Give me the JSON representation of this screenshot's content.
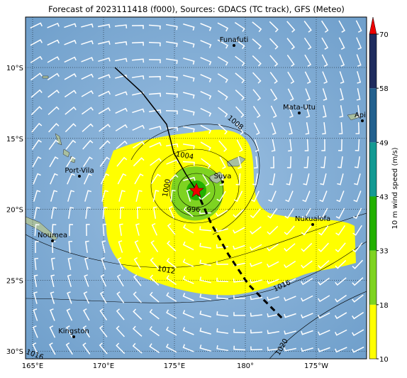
{
  "title": "Forecast of 2023111418 (f000), Sources: GDACS (TC track), GFS (Meteo)",
  "map": {
    "lon_labels": [
      "165°E",
      "170°E",
      "175°E",
      "180°",
      "175°W"
    ],
    "lat_labels": [
      "10°S",
      "15°S",
      "20°S",
      "25°S",
      "30°S"
    ],
    "places": [
      "Funafuti",
      "Mata-Utu",
      "Apia",
      "Port-Vila",
      "Suva",
      "Noumea",
      "Nukualofa",
      "Kingston"
    ],
    "isobar_labels": [
      1008,
      1004,
      1000,
      996,
      1012,
      1016,
      1020,
      1016
    ]
  },
  "colorbar": {
    "label": "10 m wind speed (m/s)",
    "ticks": [
      10,
      18,
      33,
      43,
      49,
      58,
      70
    ],
    "colors": [
      "#ffff00",
      "#7ed321",
      "#22b000",
      "#139a93",
      "#23608e",
      "#1f2c5e"
    ],
    "extend_color": "#ee0000"
  }
}
